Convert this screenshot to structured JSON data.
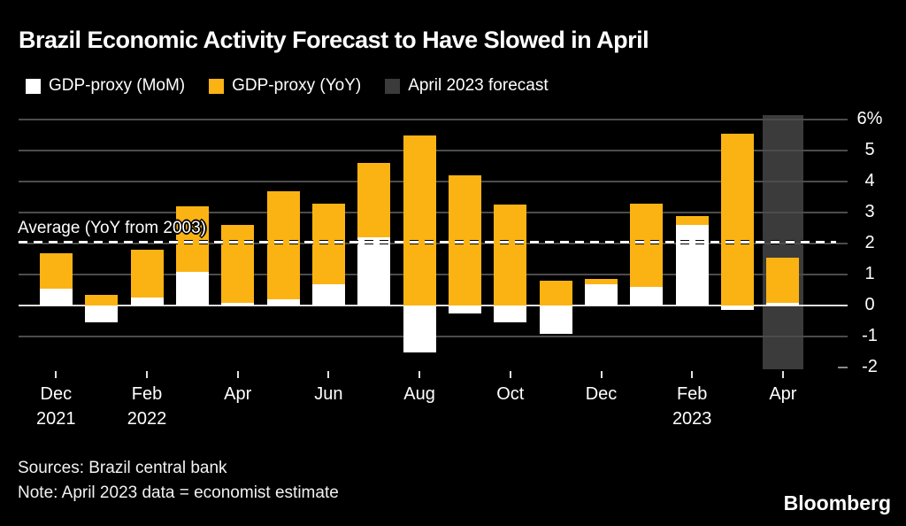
{
  "title": "Brazil Economic Activity Forecast to Have Slowed in April",
  "legend": [
    {
      "name": "gdp-proxy-mom",
      "label": "GDP-proxy (MoM)",
      "color": "#ffffff"
    },
    {
      "name": "gdp-proxy-yoy",
      "label": "GDP-proxy (YoY)",
      "color": "#fbb314"
    },
    {
      "name": "april-2023-forecast",
      "label": "April 2023 forecast",
      "color": "#3b3b3b"
    }
  ],
  "footer": {
    "sources": "Sources: Brazil central bank",
    "note": "Note: April 2023 data = economist estimate"
  },
  "logo": "Bloomberg",
  "colors": {
    "background": "#000000",
    "yoy_bar": "#fbb314",
    "mom_bar": "#ffffff",
    "forecast_band": "#3b3b3b",
    "gridline": "#4c4c4c",
    "zero_line": "#dedede",
    "text": "#ffffff"
  },
  "chart_data": {
    "type": "bar",
    "subtype": "overlay-stacked-columns",
    "title": "Brazil Economic Activity Forecast to Have Slowed in April",
    "ylabel": "",
    "xlabel": "",
    "ylim": [
      -2,
      6
    ],
    "grid": true,
    "legend_position": "top-left",
    "yticks": [
      {
        "value": 6,
        "label": "6%"
      },
      {
        "value": 5,
        "label": "5"
      },
      {
        "value": 4,
        "label": "4"
      },
      {
        "value": 3,
        "label": "3"
      },
      {
        "value": 2,
        "label": "2"
      },
      {
        "value": 1,
        "label": "1"
      },
      {
        "value": 0,
        "label": "0"
      },
      {
        "value": -1,
        "label": "-1"
      },
      {
        "value": -2,
        "label": "-2"
      }
    ],
    "categories": [
      "Dec 2021",
      "Jan 2022",
      "Feb 2022",
      "Mar 2022",
      "Apr 2022",
      "May 2022",
      "Jun 2022",
      "Jul 2022",
      "Aug 2022",
      "Sep 2022",
      "Oct 2022",
      "Nov 2022",
      "Dec 2022",
      "Jan 2023",
      "Feb 2023",
      "Mar 2023",
      "Apr 2023"
    ],
    "xticks": [
      {
        "index": 0,
        "line1": "Dec",
        "line2": "2021"
      },
      {
        "index": 2,
        "line1": "Feb",
        "line2": "2022"
      },
      {
        "index": 4,
        "line1": "Apr",
        "line2": ""
      },
      {
        "index": 6,
        "line1": "Jun",
        "line2": ""
      },
      {
        "index": 8,
        "line1": "Aug",
        "line2": ""
      },
      {
        "index": 10,
        "line1": "Oct",
        "line2": ""
      },
      {
        "index": 12,
        "line1": "Dec",
        "line2": ""
      },
      {
        "index": 14,
        "line1": "Feb",
        "line2": "2023"
      },
      {
        "index": 16,
        "line1": "Apr",
        "line2": ""
      }
    ],
    "series": [
      {
        "name": "GDP-proxy (MoM)",
        "color": "#ffffff",
        "values": [
          0.55,
          -0.55,
          0.25,
          1.1,
          0.1,
          0.2,
          0.7,
          2.2,
          -1.5,
          -0.25,
          -0.55,
          -0.9,
          0.7,
          0.6,
          2.6,
          -0.15,
          0.1
        ]
      },
      {
        "name": "GDP-proxy (YoY)",
        "color": "#fbb314",
        "values": [
          1.7,
          0.35,
          1.8,
          3.2,
          2.6,
          3.7,
          3.3,
          4.6,
          5.5,
          4.2,
          3.25,
          0.8,
          0.85,
          3.3,
          2.9,
          5.55,
          1.55
        ]
      }
    ],
    "forecast_highlight": {
      "category": "Apr 2023",
      "index": 16,
      "label": "April 2023 forecast"
    },
    "average_line": {
      "value": 2.05,
      "label": "Average (YoY from 2003)",
      "style": "dashed"
    }
  }
}
